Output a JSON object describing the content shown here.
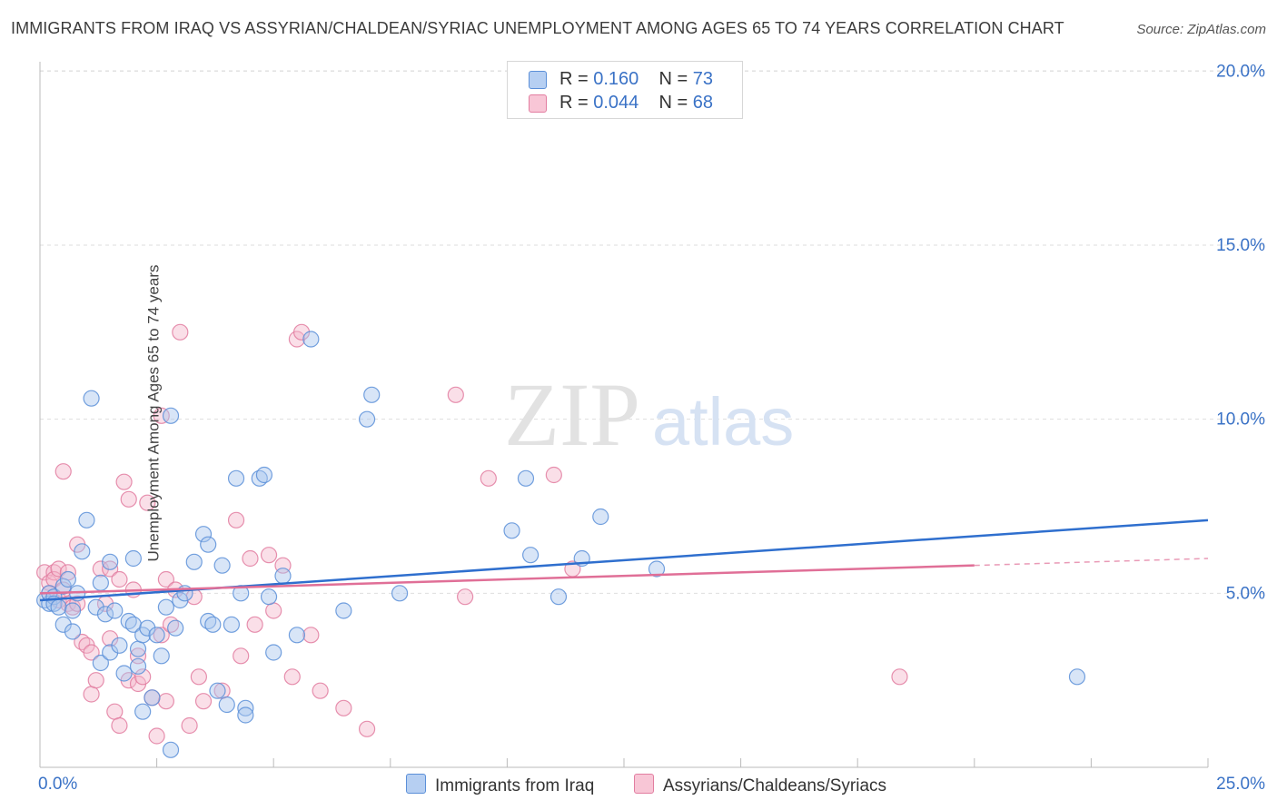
{
  "title": "IMMIGRANTS FROM IRAQ VS ASSYRIAN/CHALDEAN/SYRIAC UNEMPLOYMENT AMONG AGES 65 TO 74 YEARS CORRELATION CHART",
  "source": "Source: ZipAtlas.com",
  "watermark": {
    "zip": "ZIP",
    "atlas": "atlas"
  },
  "legend_top": {
    "rows": [
      {
        "r_label": "R =",
        "r_value": "0.160",
        "n_label": "N =",
        "n_value": "73"
      },
      {
        "r_label": "R =",
        "r_value": "0.044",
        "n_label": "N =",
        "n_value": "68"
      }
    ]
  },
  "colors": {
    "blue_fill": "#a9c6ee",
    "blue_stroke": "#5b8fd8",
    "blue_line": "#2f6fce",
    "pink_fill": "#f4b8cc",
    "pink_stroke": "#e27da0",
    "pink_line": "#e06f97",
    "axis_text": "#3a72c6",
    "grid": "#dedede"
  },
  "chart_data": {
    "type": "scatter",
    "title": "IMMIGRANTS FROM IRAQ VS ASSYRIAN/CHALDEAN/SYRIAC UNEMPLOYMENT AMONG AGES 65 TO 74 YEARS CORRELATION CHART",
    "xlabel": "",
    "ylabel": "Unemployment Among Ages 65 to 74 years",
    "xlim": [
      0,
      25
    ],
    "ylim": [
      0,
      20
    ],
    "x_tick_labels": [
      "0.0%",
      "25.0%"
    ],
    "y_tick_labels": [
      "5.0%",
      "10.0%",
      "15.0%",
      "20.0%"
    ],
    "y_ticks": [
      5,
      10,
      15,
      20
    ],
    "grid": true,
    "legend_position": "top-center",
    "series": [
      {
        "name": "Immigrants from Iraq",
        "r": 0.16,
        "n": 73,
        "trend": {
          "x": [
            0,
            25
          ],
          "y": [
            4.8,
            7.1
          ],
          "style": "solid"
        },
        "points": [
          [
            0.1,
            4.8
          ],
          [
            0.2,
            4.7
          ],
          [
            0.2,
            5.0
          ],
          [
            0.3,
            4.9
          ],
          [
            0.3,
            4.7
          ],
          [
            0.4,
            4.6
          ],
          [
            0.5,
            5.2
          ],
          [
            0.6,
            5.4
          ],
          [
            0.5,
            4.1
          ],
          [
            0.7,
            4.5
          ],
          [
            0.7,
            3.9
          ],
          [
            0.8,
            5.0
          ],
          [
            0.9,
            6.2
          ],
          [
            1.0,
            7.1
          ],
          [
            1.1,
            10.6
          ],
          [
            1.2,
            4.6
          ],
          [
            1.3,
            3.0
          ],
          [
            1.3,
            5.3
          ],
          [
            1.4,
            4.4
          ],
          [
            1.5,
            5.9
          ],
          [
            1.5,
            3.3
          ],
          [
            1.6,
            4.5
          ],
          [
            1.7,
            3.5
          ],
          [
            1.8,
            2.7
          ],
          [
            1.9,
            4.2
          ],
          [
            2.0,
            6.0
          ],
          [
            2.0,
            4.1
          ],
          [
            2.1,
            3.4
          ],
          [
            2.1,
            2.9
          ],
          [
            2.2,
            1.6
          ],
          [
            2.2,
            3.8
          ],
          [
            2.3,
            4.0
          ],
          [
            2.4,
            2.0
          ],
          [
            2.5,
            3.8
          ],
          [
            2.6,
            3.2
          ],
          [
            2.7,
            4.6
          ],
          [
            2.8,
            0.5
          ],
          [
            2.8,
            10.1
          ],
          [
            2.9,
            4.0
          ],
          [
            3.0,
            4.8
          ],
          [
            3.1,
            5.0
          ],
          [
            3.3,
            5.9
          ],
          [
            3.5,
            6.7
          ],
          [
            3.6,
            6.4
          ],
          [
            3.6,
            4.2
          ],
          [
            3.7,
            4.1
          ],
          [
            3.8,
            2.2
          ],
          [
            3.9,
            5.8
          ],
          [
            4.0,
            1.8
          ],
          [
            4.1,
            4.1
          ],
          [
            4.2,
            8.3
          ],
          [
            4.3,
            5.0
          ],
          [
            4.4,
            1.7
          ],
          [
            4.4,
            1.5
          ],
          [
            4.7,
            8.3
          ],
          [
            4.8,
            8.4
          ],
          [
            4.9,
            4.9
          ],
          [
            5.0,
            3.3
          ],
          [
            5.2,
            5.5
          ],
          [
            5.5,
            3.8
          ],
          [
            5.8,
            12.3
          ],
          [
            6.5,
            4.5
          ],
          [
            7.0,
            10.0
          ],
          [
            7.1,
            10.7
          ],
          [
            7.7,
            5.0
          ],
          [
            10.1,
            6.8
          ],
          [
            10.4,
            8.3
          ],
          [
            10.5,
            6.1
          ],
          [
            11.1,
            4.9
          ],
          [
            11.6,
            6.0
          ],
          [
            12.0,
            7.2
          ],
          [
            13.2,
            5.7
          ],
          [
            22.2,
            2.6
          ]
        ]
      },
      {
        "name": "Assyrians/Chaldeans/Syriacs",
        "r": 0.044,
        "n": 68,
        "trend": {
          "x": [
            0,
            20
          ],
          "y": [
            5.0,
            5.8
          ],
          "dash_x": [
            20,
            25
          ],
          "dash_y": [
            5.8,
            6.0
          ],
          "style": "solid+dashed"
        },
        "points": [
          [
            0.1,
            5.6
          ],
          [
            0.2,
            5.3
          ],
          [
            0.2,
            5.0
          ],
          [
            0.3,
            5.6
          ],
          [
            0.3,
            5.4
          ],
          [
            0.4,
            5.7
          ],
          [
            0.4,
            4.8
          ],
          [
            0.5,
            5.1
          ],
          [
            0.5,
            8.5
          ],
          [
            0.6,
            5.6
          ],
          [
            0.6,
            4.7
          ],
          [
            0.7,
            4.6
          ],
          [
            0.8,
            6.4
          ],
          [
            0.8,
            4.7
          ],
          [
            0.9,
            3.6
          ],
          [
            1.0,
            3.5
          ],
          [
            1.1,
            3.3
          ],
          [
            1.1,
            2.1
          ],
          [
            1.2,
            2.5
          ],
          [
            1.3,
            5.7
          ],
          [
            1.4,
            4.7
          ],
          [
            1.5,
            5.7
          ],
          [
            1.5,
            3.7
          ],
          [
            1.6,
            1.6
          ],
          [
            1.7,
            1.2
          ],
          [
            1.7,
            5.4
          ],
          [
            1.8,
            8.2
          ],
          [
            1.9,
            2.5
          ],
          [
            1.9,
            7.7
          ],
          [
            2.0,
            5.1
          ],
          [
            2.1,
            2.4
          ],
          [
            2.1,
            3.2
          ],
          [
            2.2,
            2.6
          ],
          [
            2.3,
            7.6
          ],
          [
            2.4,
            2.0
          ],
          [
            2.5,
            0.9
          ],
          [
            2.6,
            3.8
          ],
          [
            2.6,
            10.1
          ],
          [
            2.7,
            5.4
          ],
          [
            2.7,
            1.9
          ],
          [
            2.8,
            4.1
          ],
          [
            2.9,
            5.1
          ],
          [
            3.0,
            12.5
          ],
          [
            3.2,
            1.2
          ],
          [
            3.3,
            4.9
          ],
          [
            3.4,
            2.6
          ],
          [
            3.5,
            1.9
          ],
          [
            3.9,
            2.2
          ],
          [
            4.2,
            7.1
          ],
          [
            4.3,
            3.2
          ],
          [
            4.5,
            6.0
          ],
          [
            4.6,
            4.1
          ],
          [
            4.9,
            6.1
          ],
          [
            5.0,
            4.5
          ],
          [
            5.2,
            5.8
          ],
          [
            5.4,
            2.6
          ],
          [
            5.5,
            12.3
          ],
          [
            5.6,
            12.5
          ],
          [
            5.8,
            3.8
          ],
          [
            6.0,
            2.2
          ],
          [
            6.5,
            1.7
          ],
          [
            7.0,
            1.1
          ],
          [
            8.9,
            10.7
          ],
          [
            9.1,
            4.9
          ],
          [
            9.6,
            8.3
          ],
          [
            11.0,
            8.4
          ],
          [
            11.4,
            5.7
          ],
          [
            18.4,
            2.6
          ]
        ]
      }
    ]
  },
  "bottom_legend": {
    "items": [
      {
        "label": "Immigrants from Iraq"
      },
      {
        "label": "Assyrians/Chaldeans/Syriacs"
      }
    ]
  }
}
